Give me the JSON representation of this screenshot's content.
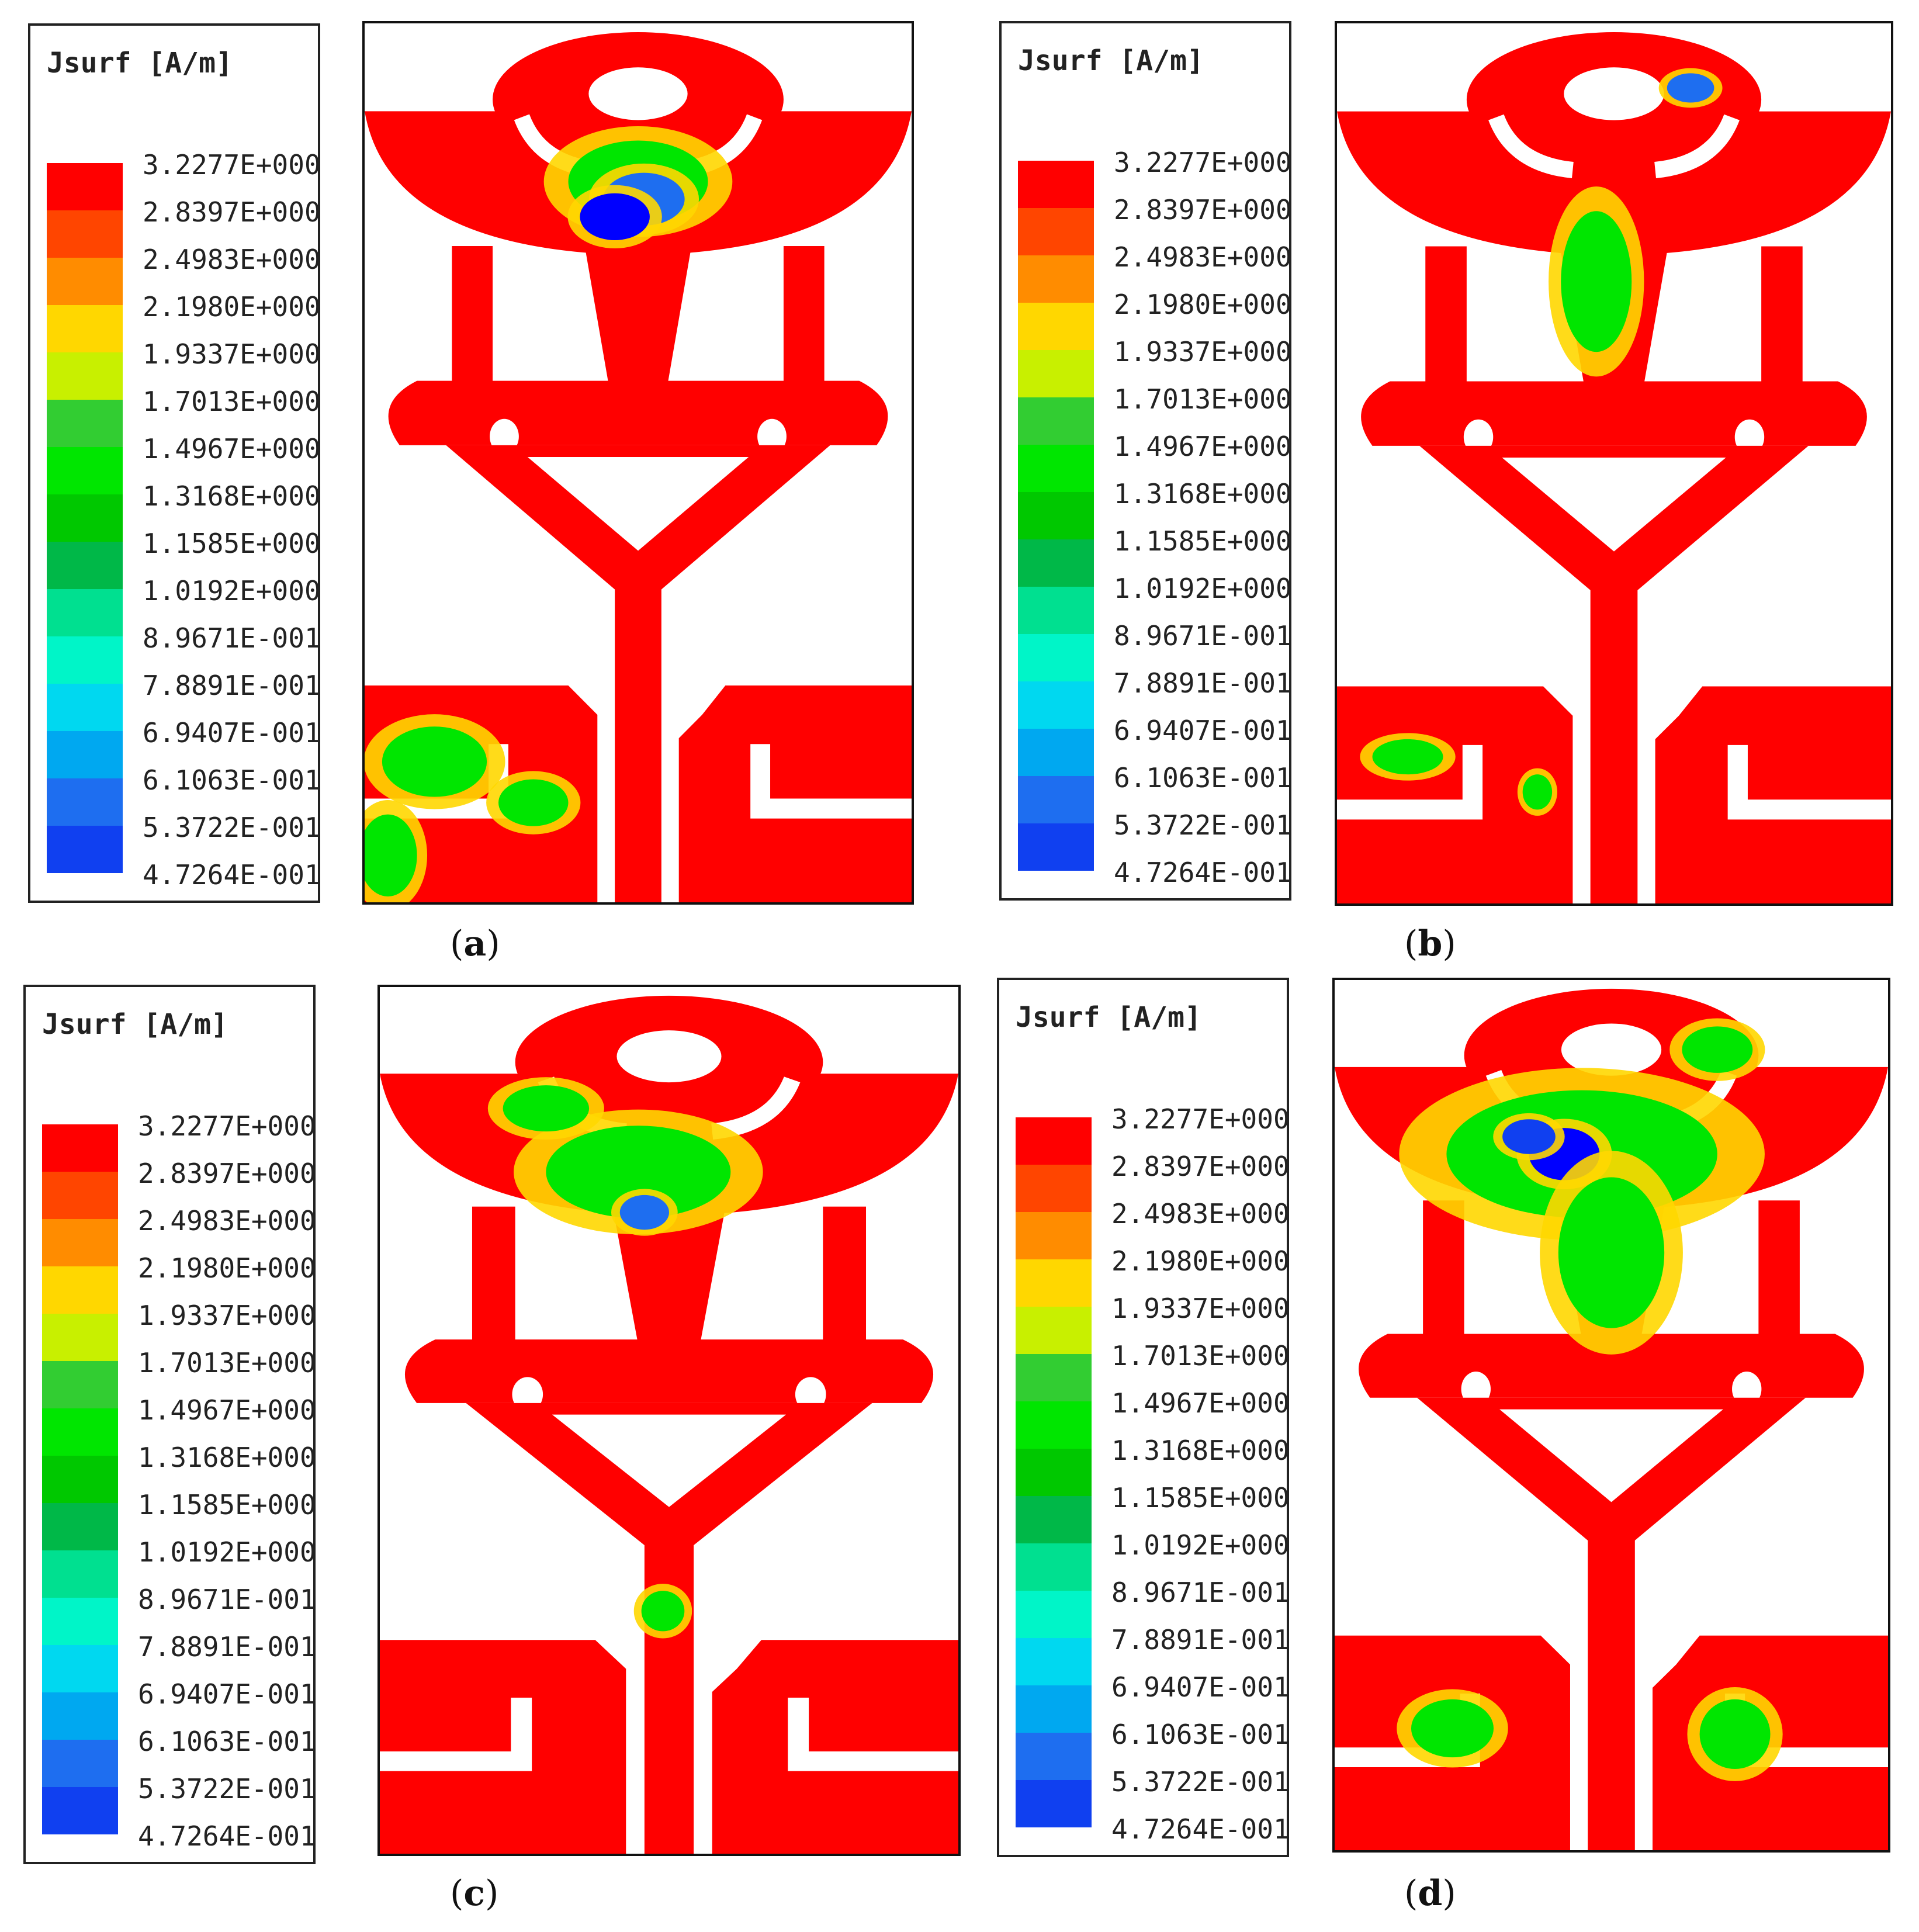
{
  "legend": {
    "title": "Jsurf [A/m]",
    "levels": [
      "3.2277E+000",
      "2.8397E+000",
      "2.4983E+000",
      "2.1980E+000",
      "1.9337E+000",
      "1.7013E+000",
      "1.4967E+000",
      "1.3168E+000",
      "1.1585E+000",
      "1.0192E+000",
      "8.9671E-001",
      "7.8891E-001",
      "6.9407E-001",
      "6.1063E-001",
      "5.3722E-001",
      "4.7264E-001"
    ],
    "colors": [
      "#ff0000",
      "#ff4500",
      "#ff8c00",
      "#ffd700",
      "#c8f000",
      "#32cd32",
      "#00e600",
      "#00c800",
      "#00b848",
      "#00e090",
      "#00f5c8",
      "#00d8f0",
      "#00a8f0",
      "#1e6ef0",
      "#1040f0",
      "#0000ff"
    ]
  },
  "panels": [
    {
      "label": "a"
    },
    {
      "label": "b"
    },
    {
      "label": "c"
    },
    {
      "label": "d"
    }
  ]
}
